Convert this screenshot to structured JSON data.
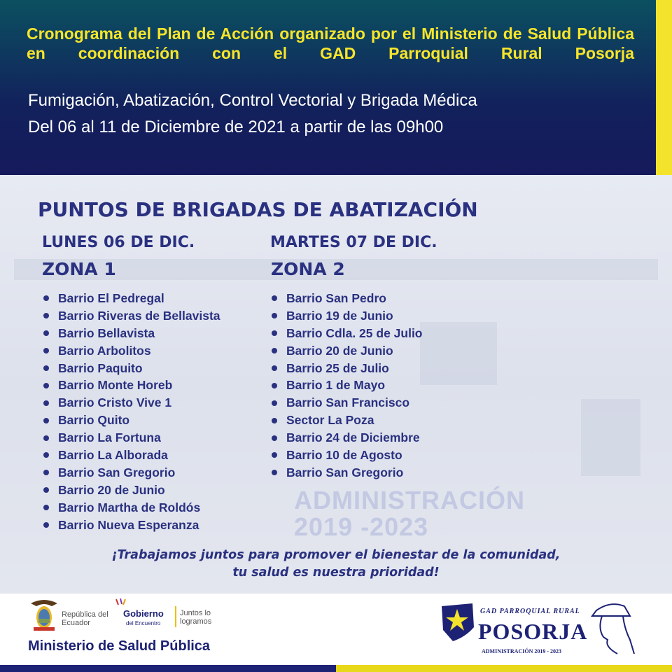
{
  "header": {
    "title": "Cronograma del Plan de Acción organizado por el Ministerio de Salud Pública en coordinación con el GAD Parroquial Rural Posorja",
    "subtitle1": "Fumigación, Abatización, Control Vectorial y Brigada Médica",
    "subtitle2": "Del 06 al 11 de Diciembre de 2021 a partir de las 09h00"
  },
  "main": {
    "heading": "PUNTOS DE BRIGADAS DE ABATIZACIÓN",
    "watermark": "ADMINISTRACIÓN 2019 -2023",
    "columns": [
      {
        "day": "LUNES 06 DE DIC.",
        "zone": "ZONA 1",
        "items": [
          "Barrio El Pedregal",
          "Barrio Riveras de Bellavista",
          "Barrio Bellavista",
          "Barrio Arbolitos",
          "Barrio Paquito",
          "Barrio Monte Horeb",
          "Barrio Cristo Vive 1",
          "Barrio Quito",
          "Barrio La Fortuna",
          "Barrio La Alborada",
          "Barrio San Gregorio",
          "Barrio 20 de Junio",
          "Barrio Martha de Roldós",
          "Barrio Nueva Esperanza"
        ]
      },
      {
        "day": "MARTES 07 DE DIC.",
        "zone": "ZONA 2",
        "items": [
          "Barrio San Pedro",
          "Barrio 19 de Junio",
          "Barrio Cdla. 25 de Julio",
          "Barrio 20 de Junio",
          "Barrio 25 de Julio",
          "Barrio 1 de Mayo",
          "Barrio San Francisco",
          "Sector La Poza",
          "Barrio 24 de Diciembre",
          "Barrio 10 de Agosto",
          "Barrio San Gregorio"
        ]
      }
    ],
    "slogan1": "¡Trabajamos juntos para promover el bienestar de la comunidad,",
    "slogan2": "tu salud es nuestra prioridad!"
  },
  "footer": {
    "republica": "República del Ecuador",
    "gobierno": "Gobierno",
    "gobierno_sub": "del Encuentro",
    "juntos": "Juntos lo logramos",
    "ministerio": "Ministerio de Salud Pública",
    "gad_top": "GAD PARROQUIAL RURAL",
    "gad_name": "POSORJA",
    "gad_admin": "ADMINISTRACIÓN 2019 - 2023"
  },
  "colors": {
    "navy": "#1e2275",
    "yellow": "#f4e32c",
    "text_blue": "#2a3180"
  }
}
